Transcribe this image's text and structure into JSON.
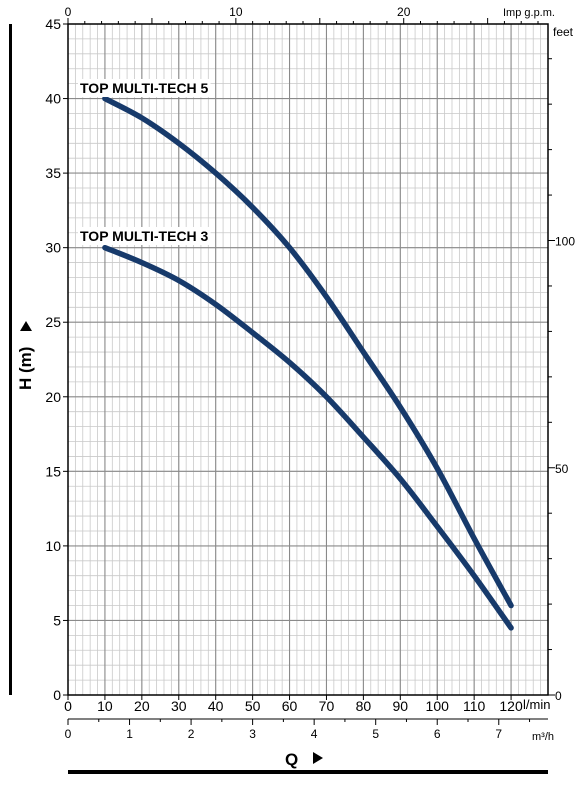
{
  "chart_data": {
    "type": "line",
    "x_axis": {
      "label": "Q",
      "unit": "l/min",
      "range": [
        0,
        130
      ],
      "ticks": [
        "0",
        "10",
        "20",
        "30",
        "40",
        "50",
        "60",
        "70",
        "80",
        "90",
        "100",
        "110",
        "120"
      ]
    },
    "x_axis_secondary": {
      "unit": "m³/h",
      "ticks": [
        "0",
        "1",
        "2",
        "3",
        "4",
        "5",
        "6",
        "7"
      ]
    },
    "x_axis_top": {
      "unit": "Imp g.p.m.",
      "ticks": [
        "0",
        "10",
        "20"
      ]
    },
    "y_axis": {
      "label": "H (m)",
      "range": [
        0,
        45
      ],
      "ticks": [
        "0",
        "5",
        "10",
        "15",
        "20",
        "25",
        "30",
        "35",
        "40",
        "45"
      ]
    },
    "y_axis_right": {
      "unit": "feet",
      "ticks": [
        "0",
        "50",
        "100"
      ]
    },
    "grid": true,
    "series": [
      {
        "name": "TOP MULTI-TECH 5",
        "color": "#173a6b",
        "points": [
          [
            10,
            40
          ],
          [
            20,
            38.7
          ],
          [
            30,
            37
          ],
          [
            40,
            35
          ],
          [
            50,
            32.7
          ],
          [
            60,
            30
          ],
          [
            70,
            26.7
          ],
          [
            80,
            23
          ],
          [
            90,
            19.3
          ],
          [
            100,
            15.2
          ],
          [
            110,
            10.5
          ],
          [
            120,
            6
          ]
        ]
      },
      {
        "name": "TOP MULTI-TECH 3",
        "color": "#173a6b",
        "points": [
          [
            10,
            30
          ],
          [
            20,
            29
          ],
          [
            30,
            27.8
          ],
          [
            40,
            26.2
          ],
          [
            50,
            24.3
          ],
          [
            60,
            22.3
          ],
          [
            70,
            20
          ],
          [
            80,
            17.3
          ],
          [
            90,
            14.5
          ],
          [
            100,
            11.3
          ],
          [
            110,
            8
          ],
          [
            120,
            4.5
          ]
        ]
      }
    ]
  }
}
